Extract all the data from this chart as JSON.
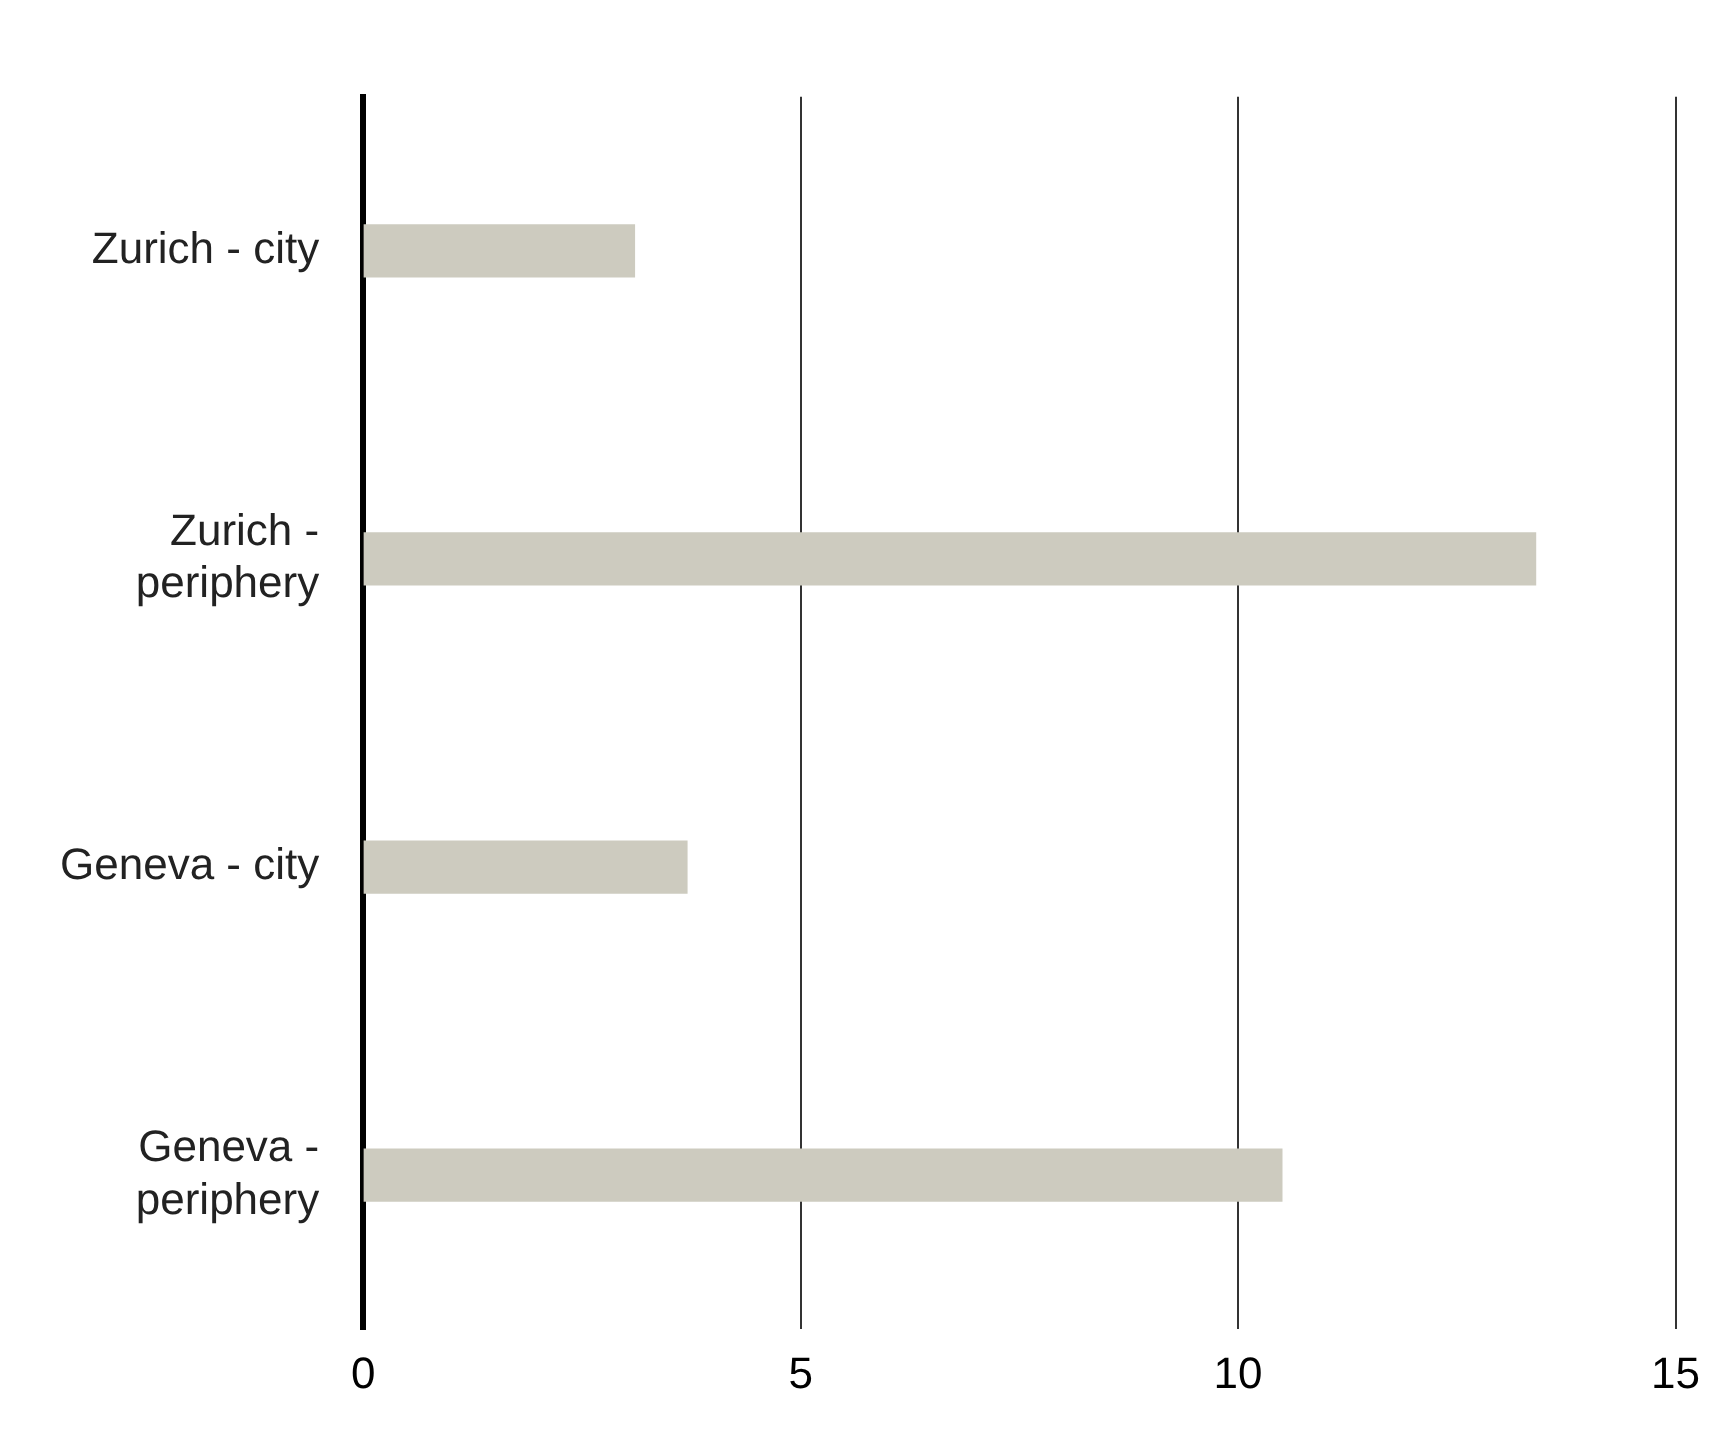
{
  "chart_data": {
    "type": "bar",
    "orientation": "horizontal",
    "categories": [
      "Zurich - city",
      "Zurich - periphery",
      "Geneva - city",
      "Geneva - periphery"
    ],
    "values": [
      3.1,
      13.4,
      3.7,
      10.5
    ],
    "color": "#cdcbbf",
    "xlim": [
      0,
      15
    ],
    "xticks": [
      0,
      5,
      10,
      15
    ],
    "grid": "x",
    "legend": false
  }
}
